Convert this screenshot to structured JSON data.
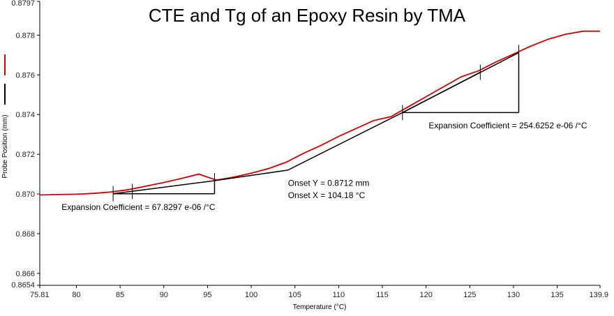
{
  "chart_data": {
    "type": "line",
    "title": "CTE and Tg of an Epoxy Resin by TMA",
    "xlabel": "Temperature (°C)",
    "ylabel": "Probe Position (mm)",
    "xlim": [
      75.81,
      139.9
    ],
    "ylim": [
      0.8654,
      0.8797
    ],
    "xticks": [
      75.81,
      80,
      85,
      90,
      95,
      100,
      105,
      110,
      115,
      120,
      125,
      130,
      135,
      139.9
    ],
    "xtick_labels": [
      "75.81",
      "80",
      "85",
      "90",
      "95",
      "100",
      "105",
      "110",
      "115",
      "120",
      "125",
      "130",
      "135",
      "139.9"
    ],
    "yticks": [
      0.8654,
      0.866,
      0.868,
      0.87,
      0.872,
      0.874,
      0.876,
      0.878,
      0.8797
    ],
    "ytick_labels": [
      "0.8654",
      "0.866",
      "0.868",
      "0.870",
      "0.872",
      "0.874",
      "0.876",
      "0.878",
      "0.8797"
    ],
    "grid": false,
    "legend": "left",
    "series": [
      {
        "color": "#cc0000",
        "x": [
          75.81,
          78,
          80,
          82,
          84,
          86,
          88,
          90,
          92,
          94,
          96,
          98,
          100,
          102,
          104,
          106,
          108,
          110,
          112,
          114,
          116,
          118,
          120,
          122,
          124,
          126,
          128,
          130,
          132,
          134,
          136,
          138,
          139.9
        ],
        "y": [
          0.86995,
          0.86997,
          0.86999,
          0.87003,
          0.8701,
          0.87022,
          0.8704,
          0.87058,
          0.87078,
          0.871,
          0.8707,
          0.87085,
          0.87105,
          0.87128,
          0.8716,
          0.87205,
          0.87245,
          0.8729,
          0.8733,
          0.8737,
          0.8739,
          0.8744,
          0.8749,
          0.8754,
          0.8759,
          0.8762,
          0.87665,
          0.87705,
          0.87745,
          0.8778,
          0.87805,
          0.8782,
          0.8782
        ]
      }
    ],
    "tangents": [
      {
        "x": [
          84.2,
          95.8
        ],
        "y": [
          0.87001,
          0.87067
        ],
        "color": "#000000"
      },
      {
        "x": [
          95.8,
          104.18,
          117.3,
          126.2
        ],
        "y": [
          0.87067,
          0.8712,
          0.8741,
          0.87613
        ],
        "color": "#000000"
      },
      {
        "x": [
          117.3,
          130.6
        ],
        "y": [
          0.8741,
          0.87712
        ],
        "color": "#000000"
      }
    ],
    "steps": [
      {
        "x0": 84.2,
        "y0": 0.87001,
        "x1": 95.8,
        "y1": 0.87067
      },
      {
        "x0": 117.3,
        "y0": 0.8741,
        "x1": 130.6,
        "y1": 0.87712
      }
    ],
    "markers": [
      {
        "x": 84.2,
        "y": 0.87001
      },
      {
        "x": 86.4,
        "y": 0.87013
      },
      {
        "x": 95.8,
        "y": 0.87067
      },
      {
        "x": 117.3,
        "y": 0.8741
      },
      {
        "x": 126.2,
        "y": 0.87613
      },
      {
        "x": 130.6,
        "y": 0.87712
      }
    ],
    "annotations": [
      {
        "text": "Expansion Coefficient = 67.8297 e-06 /°C",
        "x": 78.3,
        "y": 0.8692
      },
      {
        "text": "Onset Y = 0.8712 mm",
        "x": 104.2,
        "y": 0.8704
      },
      {
        "text": "Onset X = 104.18 °C",
        "x": 104.2,
        "y": 0.8698
      },
      {
        "text": "Expansion Coefficient = 254.6252 e-06 /°C",
        "x": 120.3,
        "y": 0.8733
      }
    ],
    "legend_items": [
      {
        "color": "#cc0000"
      },
      {
        "color": "#000000"
      }
    ]
  }
}
